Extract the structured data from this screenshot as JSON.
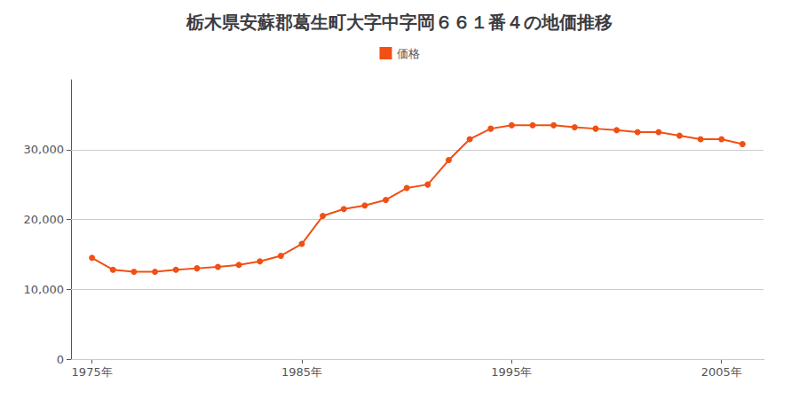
{
  "chart_data": {
    "type": "line",
    "title": "栃木県安蘇郡葛生町大字中字岡６６１番４の地価推移",
    "x": [
      1975,
      1976,
      1977,
      1978,
      1979,
      1980,
      1981,
      1982,
      1983,
      1984,
      1985,
      1986,
      1987,
      1988,
      1989,
      1990,
      1991,
      1992,
      1993,
      1994,
      1995,
      1996,
      1997,
      1998,
      1999,
      2000,
      2001,
      2002,
      2003,
      2004,
      2005,
      2006
    ],
    "series": [
      {
        "name": "価格",
        "color": "#f05014",
        "marker": "circle",
        "values": [
          14500,
          12800,
          12500,
          12500,
          12800,
          13000,
          13200,
          13500,
          14000,
          14800,
          16500,
          20500,
          21500,
          22000,
          22800,
          24500,
          25000,
          28500,
          31500,
          33000,
          33500,
          33500,
          33500,
          33200,
          33000,
          32800,
          32500,
          32500,
          32000,
          31500,
          31500,
          30800
        ]
      }
    ],
    "xlim": [
      1974,
      2007
    ],
    "xticks": [
      {
        "value": 1975,
        "label": "1975年"
      },
      {
        "value": 1985,
        "label": "1985年"
      },
      {
        "value": 1995,
        "label": "1995年"
      },
      {
        "value": 2005,
        "label": "2005年"
      }
    ],
    "ylim": [
      0,
      40000
    ],
    "yticks": [
      0,
      {
        "value": 10000,
        "label": "10,000"
      },
      {
        "value": 20000,
        "label": "20,000"
      },
      {
        "value": 30000,
        "label": "30,000"
      }
    ],
    "grid": true,
    "legend": "top"
  }
}
